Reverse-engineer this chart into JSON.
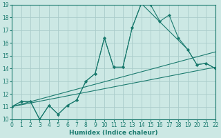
{
  "xlabel": "Humidex (Indice chaleur)",
  "bg_color": "#cce8e4",
  "line_color": "#1a7a6e",
  "grid_color": "#aaccca",
  "xlim": [
    0,
    22
  ],
  "ylim": [
    10,
    19
  ],
  "yticks": [
    10,
    11,
    12,
    13,
    14,
    15,
    16,
    17,
    18,
    19
  ],
  "xticks": [
    0,
    1,
    2,
    3,
    4,
    5,
    6,
    7,
    8,
    9,
    10,
    11,
    12,
    13,
    14,
    15,
    16,
    17,
    18,
    19,
    20,
    21,
    22
  ],
  "series": [
    {
      "x": [
        0,
        1,
        2,
        3,
        4,
        5,
        6,
        7,
        8,
        9,
        10,
        11,
        12,
        13,
        14,
        15,
        16,
        17,
        18,
        19,
        20,
        21,
        22
      ],
      "y": [
        11.0,
        11.4,
        11.4,
        10.0,
        11.1,
        10.4,
        11.1,
        11.5,
        13.0,
        13.6,
        16.4,
        14.1,
        14.1,
        17.2,
        19.1,
        19.0,
        17.7,
        18.2,
        16.4,
        15.5,
        14.3,
        14.4,
        14.0
      ],
      "has_markers": true
    },
    {
      "x": [
        0,
        22
      ],
      "y": [
        11.0,
        15.3
      ],
      "has_markers": false
    },
    {
      "x": [
        0,
        22
      ],
      "y": [
        11.0,
        14.1
      ],
      "has_markers": false
    },
    {
      "x": [
        0,
        1,
        2,
        3,
        4,
        5,
        6,
        7,
        8,
        9,
        10,
        11,
        12,
        13,
        14,
        19,
        20,
        21,
        22
      ],
      "y": [
        11.0,
        11.4,
        11.4,
        10.0,
        11.1,
        10.4,
        11.1,
        11.5,
        13.0,
        13.6,
        16.4,
        14.1,
        14.1,
        17.2,
        19.1,
        15.5,
        14.3,
        14.4,
        14.0
      ],
      "has_markers": true
    }
  ]
}
